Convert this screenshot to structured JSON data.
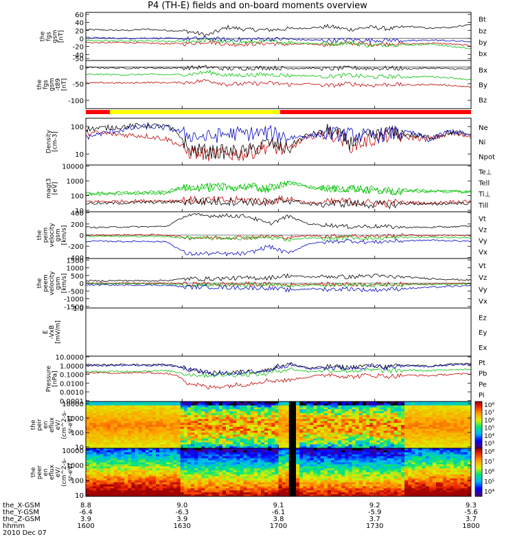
{
  "title": "P4 (TH-E) fields and on-board moments overview",
  "chart_data": [
    {
      "type": "line",
      "panel": "fgs",
      "ylabel": [
        "the",
        "fgs",
        "gsm",
        "[nT]"
      ],
      "yticks": [
        "60",
        "40",
        "20",
        "0",
        "-20",
        "-40",
        "-50"
      ],
      "tick_values": [
        60,
        40,
        20,
        0,
        -20,
        -40,
        -50
      ],
      "ylim": [
        -55,
        65
      ],
      "scale": "linear",
      "series": [
        {
          "name": "Bt",
          "color": "#000000",
          "values": [
            22,
            21,
            20,
            23,
            20,
            18,
            8,
            28,
            22,
            21,
            24,
            26,
            30,
            22,
            28,
            24,
            30,
            25,
            28,
            35
          ]
        },
        {
          "name": "bz",
          "color": "#c00000",
          "values": [
            -10,
            -11,
            -10,
            -12,
            -13,
            -13,
            -8,
            -15,
            -14,
            -12,
            -15,
            -14,
            -16,
            -12,
            -15,
            -13,
            -14,
            -12,
            -14,
            -18
          ]
        },
        {
          "name": "by",
          "color": "#00c000",
          "values": [
            -5,
            -6,
            -7,
            -6,
            -8,
            -7,
            -4,
            -10,
            -9,
            -8,
            -10,
            -12,
            -14,
            -10,
            -18,
            -15,
            -16,
            -14,
            -20,
            -25
          ]
        },
        {
          "name": "bx",
          "color": "#0000c0",
          "values": [
            2,
            1,
            0,
            1,
            0,
            -1,
            0,
            -3,
            -2,
            -1,
            -2,
            -4,
            -5,
            -3,
            -5,
            -4,
            -6,
            -4,
            -6,
            -8
          ]
        }
      ]
    },
    {
      "type": "line",
      "panel": "fgs-t89",
      "ylabel": [
        "the",
        "fgs",
        "gsm",
        "-t89",
        "[nT]"
      ],
      "yticks": [
        "0",
        "-50",
        "-100"
      ],
      "tick_values": [
        0,
        -50,
        -100
      ],
      "ylim": [
        -125,
        20
      ],
      "scale": "linear",
      "series": [
        {
          "name": "Bx",
          "color": "#000000",
          "values": [
            -1,
            -2,
            -3,
            -2,
            -3,
            -2,
            0,
            -5,
            -3,
            -2,
            -4,
            -3,
            -5,
            -2,
            -4,
            -3,
            -5,
            -3,
            -5,
            -6
          ]
        },
        {
          "name": "By",
          "color": "#00c000",
          "values": [
            -22,
            -22,
            -23,
            -22,
            -23,
            -22,
            -15,
            -25,
            -24,
            -22,
            -25,
            -26,
            -28,
            -24,
            -30,
            -28,
            -30,
            -28,
            -32,
            -38
          ]
        },
        {
          "name": "Bz",
          "color": "#c00000",
          "values": [
            -48,
            -47,
            -48,
            -46,
            -47,
            -46,
            -40,
            -52,
            -50,
            -48,
            -52,
            -50,
            -56,
            -50,
            -55,
            -52,
            -54,
            -52,
            -55,
            -60
          ]
        }
      ]
    },
    {
      "type": "line",
      "panel": "density",
      "ylabel": [
        "Density",
        "[cm-3]"
      ],
      "yticks": [
        "100",
        "10"
      ],
      "tick_values": [
        100,
        10
      ],
      "ylim": [
        4,
        200
      ],
      "scale": "log",
      "series": [
        {
          "name": "Ne",
          "color": "#c00000",
          "values": [
            60,
            55,
            50,
            45,
            35,
            12,
            10,
            10,
            10,
            20,
            12,
            40,
            60,
            20,
            30,
            50,
            40,
            35,
            55,
            45
          ]
        },
        {
          "name": "Ni",
          "color": "#000000",
          "values": [
            80,
            90,
            100,
            110,
            100,
            15,
            12,
            12,
            12,
            25,
            15,
            50,
            70,
            25,
            40,
            60,
            50,
            40,
            60,
            50
          ]
        },
        {
          "name": "Npot",
          "color": "#0000c0",
          "values": [
            40,
            60,
            80,
            100,
            90,
            50,
            40,
            55,
            55,
            60,
            40,
            45,
            55,
            50,
            45,
            55,
            60,
            30,
            70,
            45
          ]
        }
      ]
    },
    {
      "type": "line",
      "panel": "temperature",
      "ylabel": [
        "magt3",
        "[eV]"
      ],
      "yticks": [
        "10000",
        "1000",
        "100",
        "10"
      ],
      "tick_values": [
        10000,
        1000,
        100,
        10
      ],
      "ylim": [
        8,
        12000
      ],
      "scale": "log",
      "series": [
        {
          "name": "Te⊥",
          "color": "#c00000",
          "values": [
            40,
            40,
            42,
            45,
            45,
            50,
            48,
            48,
            50,
            40,
            60,
            30,
            35,
            40,
            30,
            30,
            35,
            30,
            40,
            40
          ]
        },
        {
          "name": "Tell",
          "color": "#000000",
          "values": [
            30,
            30,
            32,
            35,
            35,
            40,
            38,
            38,
            40,
            30,
            50,
            25,
            28,
            30,
            25,
            25,
            30,
            25,
            30,
            30
          ]
        },
        {
          "name": "Ti⊥",
          "color": "#00c000",
          "values": [
            150,
            150,
            160,
            170,
            180,
            400,
            380,
            400,
            420,
            300,
            800,
            400,
            300,
            350,
            250,
            200,
            250,
            200,
            200,
            200
          ]
        },
        {
          "name": "Till",
          "color": "#00c000",
          "values": [
            120,
            120,
            130,
            140,
            150,
            350,
            330,
            350,
            380,
            260,
            700,
            350,
            260,
            300,
            220,
            180,
            220,
            180,
            180,
            180
          ]
        }
      ]
    },
    {
      "type": "line",
      "panel": "peim-velocity",
      "ylabel": [
        "the",
        "peim",
        "velocity",
        "gsm",
        "[km/s]"
      ],
      "yticks": [
        "400",
        "200",
        "0",
        "-200",
        "-400"
      ],
      "tick_values": [
        400,
        200,
        0,
        -200,
        -400
      ],
      "ylim": [
        -420,
        420
      ],
      "scale": "linear",
      "series": [
        {
          "name": "Vt",
          "color": "#000000",
          "values": [
            140,
            140,
            150,
            150,
            160,
            360,
            350,
            350,
            340,
            200,
            340,
            200,
            180,
            150,
            160,
            150,
            140,
            140,
            150,
            160
          ]
        },
        {
          "name": "Vz",
          "color": "#c00000",
          "values": [
            0,
            0,
            5,
            5,
            0,
            -40,
            -50,
            -40,
            -40,
            -20,
            -40,
            -10,
            -20,
            -10,
            -20,
            -10,
            0,
            -10,
            0,
            -10
          ]
        },
        {
          "name": "Vy",
          "color": "#00c000",
          "values": [
            -20,
            -20,
            -25,
            -20,
            -30,
            -50,
            -60,
            -50,
            -60,
            -40,
            -80,
            -50,
            -60,
            -40,
            -60,
            -50,
            -40,
            -40,
            -40,
            -50
          ]
        },
        {
          "name": "Vx",
          "color": "#0000c0",
          "values": [
            -110,
            -110,
            -115,
            -110,
            -120,
            -340,
            -330,
            -340,
            -330,
            -200,
            -330,
            -150,
            -120,
            -100,
            -130,
            -110,
            -100,
            -90,
            -100,
            -110
          ]
        }
      ]
    },
    {
      "type": "line",
      "panel": "peem-velocity",
      "ylabel": [
        "the",
        "peem",
        "velocity",
        "gsm",
        "[km/s]"
      ],
      "yticks": [
        "1500",
        "1000",
        "500",
        "0",
        "-500",
        "-1000",
        "-1500"
      ],
      "tick_values": [
        1500,
        1000,
        500,
        0,
        -500,
        -1000,
        -1500
      ],
      "ylim": [
        -1600,
        1600
      ],
      "scale": "linear",
      "series": [
        {
          "name": "Vt",
          "color": "#000000",
          "values": [
            150,
            160,
            170,
            160,
            180,
            300,
            280,
            320,
            340,
            350,
            500,
            400,
            450,
            400,
            500,
            420,
            380,
            300,
            250,
            200
          ]
        },
        {
          "name": "Vz",
          "color": "#c00000",
          "values": [
            0,
            10,
            0,
            -10,
            10,
            -50,
            -40,
            -60,
            -50,
            -60,
            -100,
            -50,
            -80,
            -60,
            -80,
            -60,
            -40,
            -30,
            -20,
            -10
          ]
        },
        {
          "name": "Vy",
          "color": "#00c000",
          "values": [
            -30,
            -40,
            -30,
            -40,
            -50,
            -100,
            -80,
            -120,
            -100,
            -110,
            -200,
            -120,
            -150,
            -100,
            -150,
            -120,
            -100,
            -80,
            -60,
            -50
          ]
        },
        {
          "name": "Vx",
          "color": "#0000c0",
          "values": [
            -100,
            -110,
            -120,
            -110,
            -130,
            -250,
            -230,
            -270,
            -290,
            -300,
            -450,
            -350,
            -400,
            -350,
            -450,
            -380,
            -330,
            -260,
            -200,
            -160
          ]
        }
      ]
    },
    {
      "type": "line",
      "panel": "efs-vxb",
      "ylabel": [
        "E",
        "-VxB",
        "[mV/m]"
      ],
      "yticks": [
        "1.0"
      ],
      "tick_values": [
        1.0
      ],
      "ylim": [
        0,
        1
      ],
      "scale": "linear",
      "series": [
        {
          "name": "Ez",
          "color": "#c00000",
          "values": []
        },
        {
          "name": "Ey",
          "color": "#00c000",
          "values": []
        },
        {
          "name": "Ex",
          "color": "#0000c0",
          "values": []
        }
      ]
    },
    {
      "type": "line",
      "panel": "pressure",
      "ylabel": [
        "Pressure",
        "[nPa]"
      ],
      "yticks": [
        "10.0000",
        "1.0000",
        "0.1000",
        "0.0100",
        "0.0010",
        "0.0001"
      ],
      "tick_values": [
        10,
        1,
        0.1,
        0.01,
        0.001,
        0.0001
      ],
      "ylim": [
        8e-05,
        12
      ],
      "scale": "log",
      "series": [
        {
          "name": "Pt",
          "color": "#000000",
          "values": [
            1.2,
            1.2,
            1.3,
            1.2,
            1.3,
            0.4,
            0.15,
            0.15,
            0.2,
            0.3,
            1.5,
            0.5,
            0.8,
            0.6,
            1.0,
            0.7,
            1.2,
            0.8,
            1.5,
            1.6
          ]
        },
        {
          "name": "Pb",
          "color": "#c00000",
          "values": [
            0.15,
            0.15,
            0.14,
            0.16,
            0.12,
            0.01,
            0.003,
            0.005,
            0.008,
            0.02,
            0.02,
            0.05,
            0.1,
            0.05,
            0.08,
            0.06,
            0.08,
            0.07,
            0.1,
            0.12
          ]
        },
        {
          "name": "Pe",
          "color": "#00c000",
          "values": [
            0.2,
            0.2,
            0.22,
            0.24,
            0.25,
            0.1,
            0.08,
            0.09,
            0.1,
            0.12,
            0.4,
            0.2,
            0.3,
            0.25,
            0.3,
            0.25,
            0.3,
            0.25,
            0.35,
            0.4
          ]
        },
        {
          "name": "Pi",
          "color": "#0000c0",
          "values": [
            1.0,
            1.0,
            1.1,
            1.0,
            1.1,
            0.35,
            0.12,
            0.13,
            0.18,
            0.25,
            1.2,
            0.4,
            0.6,
            0.5,
            0.8,
            0.6,
            1.0,
            0.7,
            1.2,
            1.3
          ]
        }
      ]
    },
    {
      "type": "heatmap",
      "panel": "peir-en-eflux",
      "ylabel": [
        "the",
        "peir",
        "en",
        "eflux",
        "eV/",
        "(cm^2-s-",
        "sr-eV)"
      ],
      "yticks": [
        "10000",
        "1000",
        "100",
        "10"
      ],
      "tick_values": [
        10000,
        1000,
        100,
        10
      ],
      "ylim": [
        8,
        14000
      ],
      "scale": "log",
      "colorbar_ticks": [
        "10⁸",
        "10⁷",
        "10⁶",
        "10⁵",
        "10⁴",
        "10³"
      ]
    },
    {
      "type": "heatmap",
      "panel": "peer-en-eflux",
      "ylabel": [
        "the",
        "peer",
        "en",
        "eflux",
        "eV/",
        "(cm^2-s-",
        "sr-eV)"
      ],
      "yticks": [
        "10000",
        "1000",
        "100",
        "10"
      ],
      "tick_values": [
        10000,
        1000,
        100,
        10
      ],
      "ylim": [
        8,
        14000
      ],
      "scale": "log",
      "colorbar_ticks": [
        "10⁸",
        "10⁷",
        "10⁶",
        "10⁵",
        "10⁴"
      ]
    }
  ],
  "x_axis": {
    "ticks": [
      {
        "x": "8.8",
        "y": "-6.4",
        "z": "3.9",
        "t": "1600"
      },
      {
        "x": "9.0",
        "y": "-6.3",
        "z": "3.9",
        "t": "1630"
      },
      {
        "x": "9.1",
        "y": "-6.1",
        "z": "3.8",
        "t": "1700"
      },
      {
        "x": "9.2",
        "y": "-5.9",
        "z": "3.7",
        "t": "1730"
      },
      {
        "x": "9.3",
        "y": "-5.6",
        "z": "3.7",
        "t": "1800"
      }
    ],
    "row_labels": [
      "the_X-GSM",
      "the_Y-GSM",
      "the_Z-GSM",
      "hhmm"
    ],
    "date": "2010 Dec 07"
  },
  "mode_bar": {
    "colors": {
      "red": "#ff0000",
      "yellow": "#ffff00"
    }
  }
}
